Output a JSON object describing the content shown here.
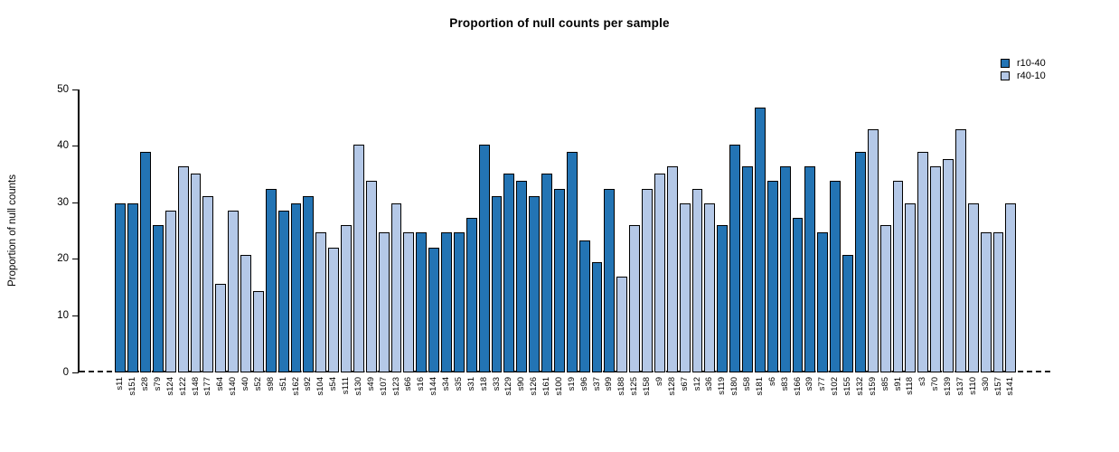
{
  "chart_data": {
    "type": "bar",
    "title": "Proportion of null counts per sample",
    "ylabel": "Proportion of null counts",
    "xlabel": "",
    "ylim": [
      0,
      50
    ],
    "yticks": [
      0,
      10,
      20,
      30,
      40,
      50
    ],
    "grid": false,
    "legend_position": "top-right",
    "zero_line_style": "dashed",
    "series": [
      {
        "name": "r10-40",
        "color": "#2374b4"
      },
      {
        "name": "r40-10",
        "color": "#b4c8e7"
      }
    ],
    "bars": [
      {
        "label": "s11",
        "value": 29.9,
        "series": "r10-40"
      },
      {
        "label": "s151",
        "value": 29.9,
        "series": "r10-40"
      },
      {
        "label": "s28",
        "value": 39.0,
        "series": "r10-40"
      },
      {
        "label": "s79",
        "value": 26.0,
        "series": "r10-40"
      },
      {
        "label": "s124",
        "value": 28.6,
        "series": "r40-10"
      },
      {
        "label": "s122",
        "value": 36.4,
        "series": "r40-10"
      },
      {
        "label": "s148",
        "value": 35.1,
        "series": "r40-10"
      },
      {
        "label": "s177",
        "value": 31.2,
        "series": "r40-10"
      },
      {
        "label": "s64",
        "value": 15.6,
        "series": "r40-10"
      },
      {
        "label": "s140",
        "value": 28.6,
        "series": "r40-10"
      },
      {
        "label": "s40",
        "value": 20.8,
        "series": "r40-10"
      },
      {
        "label": "s52",
        "value": 14.3,
        "series": "r40-10"
      },
      {
        "label": "s98",
        "value": 32.5,
        "series": "r10-40"
      },
      {
        "label": "s51",
        "value": 28.6,
        "series": "r10-40"
      },
      {
        "label": "s162",
        "value": 29.9,
        "series": "r10-40"
      },
      {
        "label": "s92",
        "value": 31.2,
        "series": "r10-40"
      },
      {
        "label": "s104",
        "value": 24.7,
        "series": "r40-10"
      },
      {
        "label": "s54",
        "value": 22.1,
        "series": "r40-10"
      },
      {
        "label": "s111",
        "value": 26.0,
        "series": "r40-10"
      },
      {
        "label": "s130",
        "value": 40.3,
        "series": "r40-10"
      },
      {
        "label": "s49",
        "value": 33.8,
        "series": "r40-10"
      },
      {
        "label": "s107",
        "value": 24.7,
        "series": "r40-10"
      },
      {
        "label": "s123",
        "value": 29.9,
        "series": "r40-10"
      },
      {
        "label": "s66",
        "value": 24.7,
        "series": "r40-10"
      },
      {
        "label": "s16",
        "value": 24.7,
        "series": "r10-40"
      },
      {
        "label": "s144",
        "value": 22.1,
        "series": "r10-40"
      },
      {
        "label": "s34",
        "value": 24.7,
        "series": "r10-40"
      },
      {
        "label": "s35",
        "value": 24.7,
        "series": "r10-40"
      },
      {
        "label": "s31",
        "value": 27.3,
        "series": "r10-40"
      },
      {
        "label": "s18",
        "value": 40.3,
        "series": "r10-40"
      },
      {
        "label": "s33",
        "value": 31.2,
        "series": "r10-40"
      },
      {
        "label": "s129",
        "value": 35.1,
        "series": "r10-40"
      },
      {
        "label": "s90",
        "value": 33.8,
        "series": "r10-40"
      },
      {
        "label": "s126",
        "value": 31.2,
        "series": "r10-40"
      },
      {
        "label": "s161",
        "value": 35.1,
        "series": "r10-40"
      },
      {
        "label": "s100",
        "value": 32.5,
        "series": "r10-40"
      },
      {
        "label": "s19",
        "value": 39.0,
        "series": "r10-40"
      },
      {
        "label": "s96",
        "value": 23.4,
        "series": "r10-40"
      },
      {
        "label": "s37",
        "value": 19.5,
        "series": "r10-40"
      },
      {
        "label": "s99",
        "value": 32.5,
        "series": "r10-40"
      },
      {
        "label": "s188",
        "value": 16.9,
        "series": "r40-10"
      },
      {
        "label": "s125",
        "value": 26.0,
        "series": "r40-10"
      },
      {
        "label": "s158",
        "value": 32.5,
        "series": "r40-10"
      },
      {
        "label": "s9",
        "value": 35.1,
        "series": "r40-10"
      },
      {
        "label": "s128",
        "value": 36.4,
        "series": "r40-10"
      },
      {
        "label": "s67",
        "value": 29.9,
        "series": "r40-10"
      },
      {
        "label": "s12",
        "value": 32.5,
        "series": "r40-10"
      },
      {
        "label": "s36",
        "value": 29.9,
        "series": "r40-10"
      },
      {
        "label": "s119",
        "value": 26.0,
        "series": "r10-40"
      },
      {
        "label": "s180",
        "value": 40.3,
        "series": "r10-40"
      },
      {
        "label": "s58",
        "value": 36.4,
        "series": "r10-40"
      },
      {
        "label": "s181",
        "value": 46.8,
        "series": "r10-40"
      },
      {
        "label": "s6",
        "value": 33.8,
        "series": "r10-40"
      },
      {
        "label": "s83",
        "value": 36.4,
        "series": "r10-40"
      },
      {
        "label": "s166",
        "value": 27.3,
        "series": "r10-40"
      },
      {
        "label": "s39",
        "value": 36.4,
        "series": "r10-40"
      },
      {
        "label": "s77",
        "value": 24.7,
        "series": "r10-40"
      },
      {
        "label": "s102",
        "value": 33.8,
        "series": "r10-40"
      },
      {
        "label": "s155",
        "value": 20.8,
        "series": "r10-40"
      },
      {
        "label": "s132",
        "value": 39.0,
        "series": "r10-40"
      },
      {
        "label": "s159",
        "value": 42.9,
        "series": "r40-10"
      },
      {
        "label": "s85",
        "value": 26.0,
        "series": "r40-10"
      },
      {
        "label": "s91",
        "value": 33.8,
        "series": "r40-10"
      },
      {
        "label": "s118",
        "value": 29.9,
        "series": "r40-10"
      },
      {
        "label": "s3",
        "value": 39.0,
        "series": "r40-10"
      },
      {
        "label": "s70",
        "value": 36.4,
        "series": "r40-10"
      },
      {
        "label": "s139",
        "value": 37.7,
        "series": "r40-10"
      },
      {
        "label": "s137",
        "value": 42.9,
        "series": "r40-10"
      },
      {
        "label": "s110",
        "value": 29.9,
        "series": "r40-10"
      },
      {
        "label": "s30",
        "value": 24.7,
        "series": "r40-10"
      },
      {
        "label": "s157",
        "value": 24.7,
        "series": "r40-10"
      },
      {
        "label": "s141",
        "value": 29.9,
        "series": "r40-10"
      }
    ]
  }
}
